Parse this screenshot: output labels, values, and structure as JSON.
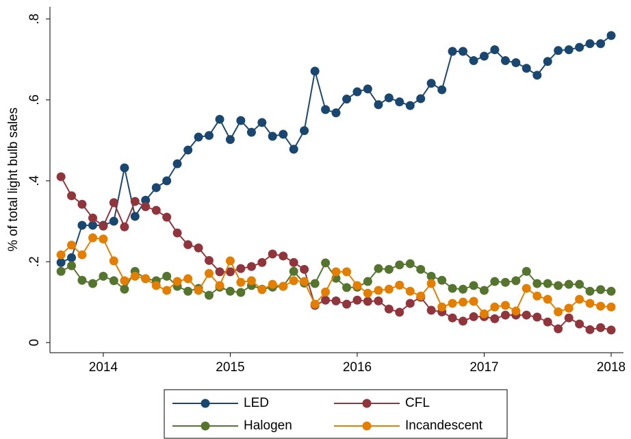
{
  "chart_data": {
    "type": "line",
    "y_label": "% of total light bulb sales",
    "x": [
      2013.667,
      2013.75,
      2013.833,
      2013.917,
      2014,
      2014.083,
      2014.167,
      2014.25,
      2014.333,
      2014.417,
      2014.5,
      2014.583,
      2014.667,
      2014.75,
      2014.833,
      2014.917,
      2015,
      2015.083,
      2015.167,
      2015.25,
      2015.333,
      2015.417,
      2015.5,
      2015.583,
      2015.667,
      2015.75,
      2015.833,
      2015.917,
      2016,
      2016.083,
      2016.167,
      2016.25,
      2016.333,
      2016.417,
      2016.5,
      2016.583,
      2016.667,
      2016.75,
      2016.833,
      2016.917,
      2017,
      2017.083,
      2017.167,
      2017.25,
      2017.333,
      2017.417,
      2017.5,
      2017.583,
      2017.667,
      2017.75,
      2017.833,
      2017.917,
      2018
    ],
    "series": [
      {
        "name": "LED",
        "color": "#1a476f",
        "values": [
          0.198,
          0.21,
          0.29,
          0.29,
          0.29,
          0.3,
          0.432,
          0.312,
          0.352,
          0.383,
          0.4,
          0.442,
          0.476,
          0.508,
          0.512,
          0.552,
          0.502,
          0.549,
          0.52,
          0.544,
          0.51,
          0.515,
          0.478,
          0.524,
          0.671,
          0.576,
          0.568,
          0.602,
          0.62,
          0.627,
          0.588,
          0.605,
          0.595,
          0.586,
          0.603,
          0.641,
          0.625,
          0.72,
          0.72,
          0.697,
          0.708,
          0.724,
          0.697,
          0.692,
          0.678,
          0.661,
          0.695,
          0.722,
          0.724,
          0.73,
          0.739,
          0.739,
          0.759
        ]
      },
      {
        "name": "CFL",
        "color": "#90353b",
        "values": [
          0.41,
          0.363,
          0.342,
          0.308,
          0.288,
          0.346,
          0.286,
          0.349,
          0.336,
          0.327,
          0.31,
          0.271,
          0.242,
          0.234,
          0.203,
          0.175,
          0.175,
          0.183,
          0.188,
          0.198,
          0.219,
          0.214,
          0.198,
          0.181,
          0.092,
          0.105,
          0.103,
          0.095,
          0.105,
          0.102,
          0.103,
          0.083,
          0.075,
          0.097,
          0.112,
          0.08,
          0.076,
          0.061,
          0.053,
          0.064,
          0.064,
          0.059,
          0.068,
          0.068,
          0.068,
          0.063,
          0.051,
          0.034,
          0.061,
          0.046,
          0.032,
          0.037,
          0.031
        ]
      },
      {
        "name": "Halogen",
        "color": "#55752f",
        "values": [
          0.176,
          0.19,
          0.154,
          0.146,
          0.164,
          0.153,
          0.132,
          0.176,
          0.158,
          0.153,
          0.164,
          0.139,
          0.127,
          0.134,
          0.117,
          0.137,
          0.127,
          0.124,
          0.141,
          0.132,
          0.137,
          0.139,
          0.176,
          0.147,
          0.146,
          0.197,
          0.159,
          0.136,
          0.137,
          0.151,
          0.183,
          0.181,
          0.192,
          0.195,
          0.181,
          0.164,
          0.154,
          0.134,
          0.132,
          0.141,
          0.129,
          0.151,
          0.149,
          0.153,
          0.176,
          0.146,
          0.146,
          0.141,
          0.144,
          0.144,
          0.127,
          0.131,
          0.127
        ]
      },
      {
        "name": "Incandescent",
        "color": "#e37e00",
        "values": [
          0.217,
          0.241,
          0.217,
          0.259,
          0.256,
          0.202,
          0.153,
          0.164,
          0.158,
          0.141,
          0.129,
          0.151,
          0.158,
          0.129,
          0.171,
          0.141,
          0.202,
          0.149,
          0.153,
          0.131,
          0.144,
          0.139,
          0.153,
          0.151,
          0.095,
          0.125,
          0.175,
          0.175,
          0.141,
          0.122,
          0.129,
          0.132,
          0.142,
          0.127,
          0.115,
          0.146,
          0.088,
          0.097,
          0.1,
          0.102,
          0.071,
          0.088,
          0.092,
          0.078,
          0.134,
          0.115,
          0.107,
          0.076,
          0.085,
          0.107,
          0.097,
          0.09,
          0.088
        ]
      }
    ],
    "xlim": [
      2013.58,
      2018.097
    ],
    "xticks": [
      2014,
      2015,
      2016,
      2017,
      2018
    ],
    "ylim": [
      -0.025,
      0.83
    ],
    "yticks": [
      0,
      {
        "value": 0.2,
        "label": ".2"
      },
      {
        "value": 0.4,
        "label": ".4"
      },
      {
        "value": 0.6,
        "label": ".6"
      },
      {
        "value": 0.8,
        "label": ".8"
      }
    ],
    "legend": "bottom"
  }
}
